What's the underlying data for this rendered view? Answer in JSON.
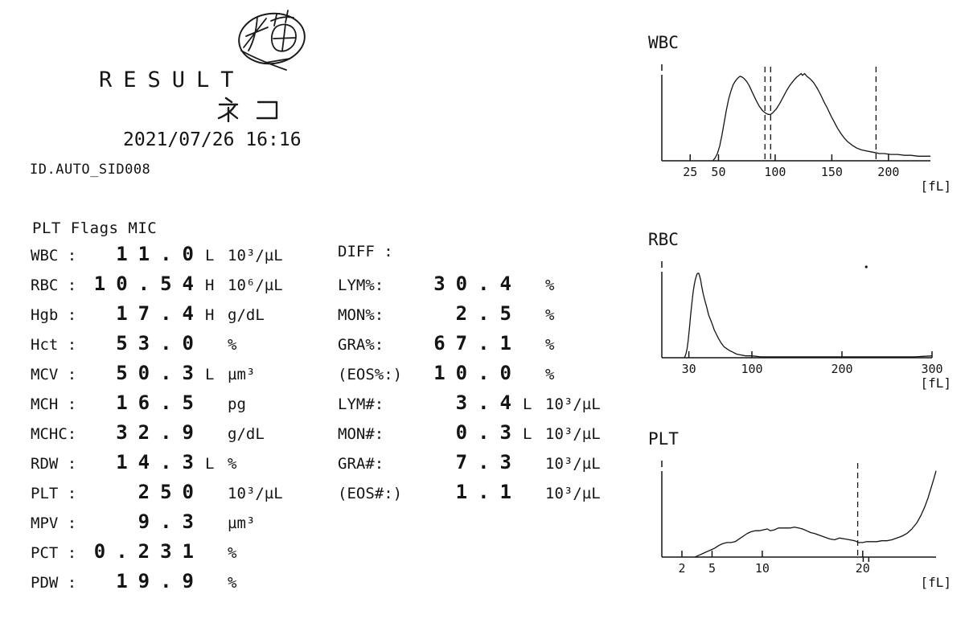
{
  "header": {
    "stamp_label": "猫",
    "title": "RESULT",
    "species": "ネコ",
    "datetime": "2021/07/26 16:16",
    "id": "ID.AUTO_SID008"
  },
  "flags_line": "PLT Flags MIC",
  "left_rows": [
    {
      "label": "WBC :",
      "value": "11.0",
      "flag": "L",
      "unit": "10³/µL"
    },
    {
      "label": "RBC :",
      "value": "10.54",
      "flag": "H",
      "unit": "10⁶/µL"
    },
    {
      "label": "Hgb :",
      "value": "17.4",
      "flag": "H",
      "unit": "g/dL"
    },
    {
      "label": "Hct :",
      "value": "53.0",
      "flag": "",
      "unit": "%"
    },
    {
      "label": "MCV :",
      "value": "50.3",
      "flag": "L",
      "unit": "µm³"
    },
    {
      "label": "MCH :",
      "value": "16.5",
      "flag": "",
      "unit": "pg"
    },
    {
      "label": "MCHC:",
      "value": "32.9",
      "flag": "",
      "unit": "g/dL"
    },
    {
      "label": "RDW :",
      "value": "14.3",
      "flag": "L",
      "unit": "%"
    },
    {
      "label": "PLT :",
      "value": "250",
      "flag": "",
      "unit": "10³/µL"
    },
    {
      "label": "MPV :",
      "value": "9.3",
      "flag": "",
      "unit": "µm³"
    },
    {
      "label": "PCT :",
      "value": "0.231",
      "flag": "",
      "unit": "%"
    },
    {
      "label": "PDW :",
      "value": "19.9",
      "flag": "",
      "unit": "%"
    }
  ],
  "diff_rows": [
    {
      "label": "DIFF :",
      "value": "",
      "flag": "",
      "unit": ""
    },
    {
      "label": "LYM%:",
      "value": "30.4",
      "flag": "",
      "unit": "%"
    },
    {
      "label": "MON%:",
      "value": "2.5",
      "flag": "",
      "unit": "%"
    },
    {
      "label": "GRA%:",
      "value": "67.1",
      "flag": "",
      "unit": "%"
    },
    {
      "label": "(EOS%:)",
      "value": "10.0",
      "flag": "",
      "unit": "%"
    },
    {
      "label": "LYM#:",
      "value": "3.4",
      "flag": "L",
      "unit": "10³/µL"
    },
    {
      "label": "MON#:",
      "value": "0.3",
      "flag": "L",
      "unit": "10³/µL"
    },
    {
      "label": "GRA#:",
      "value": "7.3",
      "flag": "",
      "unit": "10³/µL"
    },
    {
      "label": "(EOS#:)",
      "value": "1.1",
      "flag": "",
      "unit": "10³/µL"
    }
  ],
  "chart_data": [
    {
      "type": "line",
      "title": "WBC",
      "xlabel": "[fL]",
      "x_range": [
        0,
        237
      ],
      "x_ticks": [
        25,
        50,
        100,
        150,
        200
      ],
      "dashed_markers_x": [
        91,
        96,
        189
      ],
      "grid": false,
      "curve": [
        [
          45,
          0
        ],
        [
          47,
          3
        ],
        [
          49,
          8
        ],
        [
          51,
          16
        ],
        [
          53,
          28
        ],
        [
          55,
          42
        ],
        [
          57,
          56
        ],
        [
          59,
          68
        ],
        [
          61,
          77
        ],
        [
          63,
          84
        ],
        [
          65,
          88
        ],
        [
          67,
          91
        ],
        [
          69,
          93
        ],
        [
          71,
          92
        ],
        [
          73,
          90
        ],
        [
          75,
          87
        ],
        [
          77,
          83
        ],
        [
          80,
          75
        ],
        [
          83,
          67
        ],
        [
          86,
          60
        ],
        [
          89,
          55
        ],
        [
          92,
          52
        ],
        [
          94,
          51
        ],
        [
          96,
          51
        ],
        [
          98,
          53
        ],
        [
          101,
          57
        ],
        [
          104,
          63
        ],
        [
          107,
          70
        ],
        [
          110,
          77
        ],
        [
          113,
          83
        ],
        [
          116,
          88
        ],
        [
          119,
          92
        ],
        [
          121,
          94
        ],
        [
          123,
          96
        ],
        [
          124,
          94
        ],
        [
          126,
          96
        ],
        [
          128,
          93
        ],
        [
          131,
          90
        ],
        [
          134,
          86
        ],
        [
          137,
          80
        ],
        [
          140,
          73
        ],
        [
          143,
          65
        ],
        [
          146,
          58
        ],
        [
          149,
          50
        ],
        [
          152,
          43
        ],
        [
          155,
          36
        ],
        [
          158,
          30
        ],
        [
          161,
          25
        ],
        [
          164,
          21
        ],
        [
          168,
          17
        ],
        [
          172,
          14
        ],
        [
          176,
          12
        ],
        [
          180,
          11
        ],
        [
          184,
          10
        ],
        [
          188,
          9
        ],
        [
          192,
          8
        ],
        [
          196,
          8
        ],
        [
          202,
          7
        ],
        [
          208,
          7
        ],
        [
          214,
          6
        ],
        [
          220,
          6
        ],
        [
          226,
          5
        ],
        [
          232,
          5
        ],
        [
          237,
          5
        ]
      ]
    },
    {
      "type": "line",
      "title": "RBC",
      "xlabel": "[fL]",
      "x_range": [
        0,
        300
      ],
      "x_ticks": [
        30,
        100,
        200,
        300
      ],
      "dashed_markers_x": [],
      "grid": false,
      "stray_dot": [
        227,
        100
      ],
      "curve": [
        [
          25,
          0
        ],
        [
          26,
          2
        ],
        [
          27,
          5
        ],
        [
          28,
          10
        ],
        [
          29,
          17
        ],
        [
          30,
          26
        ],
        [
          31,
          36
        ],
        [
          32,
          47
        ],
        [
          33,
          57
        ],
        [
          34,
          66
        ],
        [
          35,
          74
        ],
        [
          36,
          80
        ],
        [
          37,
          85
        ],
        [
          38,
          89
        ],
        [
          39,
          92
        ],
        [
          40,
          93
        ],
        [
          41,
          93
        ],
        [
          42,
          90
        ],
        [
          43,
          86
        ],
        [
          44,
          80
        ],
        [
          46,
          70
        ],
        [
          48,
          62
        ],
        [
          50,
          55
        ],
        [
          52,
          47
        ],
        [
          54,
          42
        ],
        [
          56,
          37
        ],
        [
          58,
          31
        ],
        [
          60,
          27
        ],
        [
          63,
          21
        ],
        [
          66,
          16
        ],
        [
          69,
          12
        ],
        [
          72,
          10
        ],
        [
          75,
          8
        ],
        [
          79,
          6
        ],
        [
          83,
          4
        ],
        [
          88,
          3
        ],
        [
          93,
          2
        ],
        [
          100,
          2
        ],
        [
          110,
          1
        ],
        [
          125,
          1
        ],
        [
          145,
          1
        ],
        [
          170,
          1
        ],
        [
          200,
          1
        ],
        [
          230,
          1
        ],
        [
          260,
          1
        ],
        [
          280,
          1
        ],
        [
          300,
          2
        ]
      ]
    },
    {
      "type": "line",
      "title": "PLT",
      "xlabel": "[fL]",
      "x_range": [
        0,
        27.3
      ],
      "x_ticks": [
        2,
        5,
        10,
        20
      ],
      "dashed_markers_x": [
        19.5
      ],
      "down_ticks_x": [
        20.05,
        20.6
      ],
      "grid": false,
      "curve": [
        [
          3.3,
          0
        ],
        [
          3.7,
          2
        ],
        [
          4.1,
          4
        ],
        [
          4.5,
          6
        ],
        [
          4.9,
          8
        ],
        [
          5.3,
          10
        ],
        [
          5.7,
          13
        ],
        [
          6.1,
          15
        ],
        [
          6.5,
          16
        ],
        [
          6.9,
          16
        ],
        [
          7.3,
          17
        ],
        [
          7.7,
          20
        ],
        [
          8.1,
          23
        ],
        [
          8.5,
          26
        ],
        [
          8.9,
          28
        ],
        [
          9.3,
          29
        ],
        [
          9.7,
          29
        ],
        [
          10.1,
          30
        ],
        [
          10.5,
          31
        ],
        [
          10.8,
          29
        ],
        [
          11.2,
          30
        ],
        [
          11.6,
          32
        ],
        [
          12,
          32
        ],
        [
          12.4,
          32
        ],
        [
          12.8,
          32
        ],
        [
          13.2,
          33
        ],
        [
          13.6,
          32
        ],
        [
          14,
          31
        ],
        [
          14.4,
          29
        ],
        [
          14.8,
          27
        ],
        [
          15.2,
          26
        ],
        [
          15.7,
          24
        ],
        [
          16.2,
          22
        ],
        [
          16.7,
          20
        ],
        [
          17.2,
          19
        ],
        [
          17.7,
          21
        ],
        [
          18.2,
          20
        ],
        [
          18.7,
          19
        ],
        [
          19.2,
          18
        ],
        [
          19.6,
          16
        ],
        [
          20,
          16
        ],
        [
          20.4,
          17
        ],
        [
          20.9,
          17
        ],
        [
          21.4,
          17
        ],
        [
          21.9,
          18
        ],
        [
          22.4,
          18
        ],
        [
          22.9,
          19
        ],
        [
          23.4,
          21
        ],
        [
          23.9,
          23
        ],
        [
          24.4,
          26
        ],
        [
          24.9,
          31
        ],
        [
          25.4,
          38
        ],
        [
          25.8,
          46
        ],
        [
          26.2,
          56
        ],
        [
          26.5,
          65
        ],
        [
          26.8,
          76
        ],
        [
          27.1,
          87
        ],
        [
          27.3,
          95
        ]
      ]
    }
  ]
}
